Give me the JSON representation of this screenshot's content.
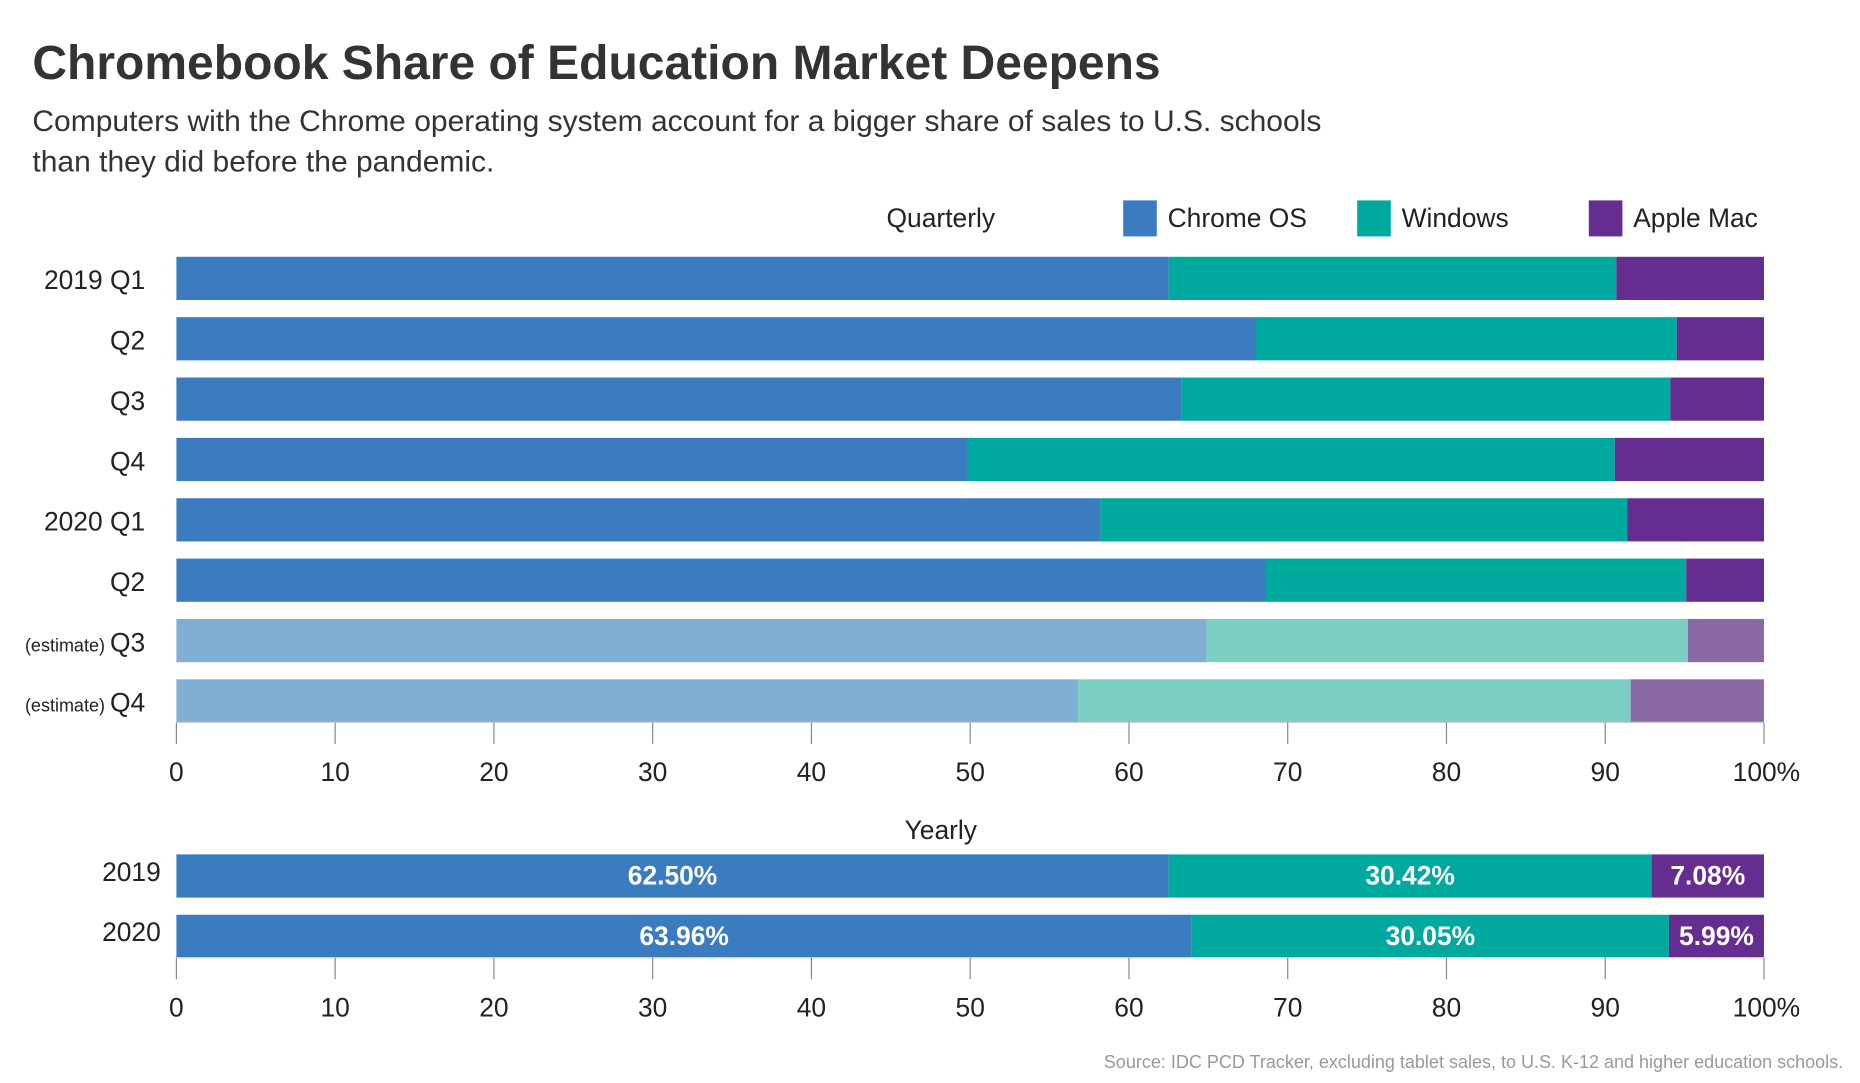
{
  "title": "Chromebook Share of Education Market Deepens",
  "subtitle_lines": [
    "Computers with the Chrome operating system account for a bigger share of sales to U.S. schools",
    "than they did before the pandemic."
  ],
  "source": "Source: IDC PCD Tracker, excluding tablet sales, to U.S. K-12 and higher education schools.",
  "colors": {
    "chrome": "#3b7bbf",
    "windows": "#00a99d",
    "apple": "#662d91",
    "chrome_est": "#80afd6",
    "windows_est": "#7acfc2",
    "apple_est": "#8a6aa5"
  },
  "chart_data": [
    {
      "type": "bar",
      "orientation": "horizontal-stacked",
      "title": "Quarterly",
      "legend": [
        "Chrome OS",
        "Windows",
        "Apple Mac"
      ],
      "legend_placement": "top-right",
      "categories": [
        {
          "prefix": "",
          "label": "2019 Q1",
          "estimate": false
        },
        {
          "prefix": "",
          "label": "Q2",
          "estimate": false
        },
        {
          "prefix": "",
          "label": "Q3",
          "estimate": false
        },
        {
          "prefix": "",
          "label": "Q4",
          "estimate": false
        },
        {
          "prefix": "",
          "label": "2020 Q1",
          "estimate": false
        },
        {
          "prefix": "",
          "label": "Q2",
          "estimate": false
        },
        {
          "prefix": "(estimate)",
          "label": "Q3",
          "estimate": true
        },
        {
          "prefix": "(estimate)",
          "label": "Q4",
          "estimate": true
        }
      ],
      "series": [
        {
          "name": "Chrome OS",
          "values": [
            62.5,
            68.0,
            63.3,
            49.8,
            58.2,
            68.6,
            64.9,
            56.8
          ]
        },
        {
          "name": "Windows",
          "values": [
            28.2,
            26.5,
            30.8,
            40.8,
            33.2,
            26.5,
            30.3,
            34.8
          ]
        },
        {
          "name": "Apple Mac",
          "values": [
            9.3,
            5.5,
            5.9,
            9.4,
            8.6,
            4.9,
            4.8,
            8.4
          ]
        }
      ],
      "xlim": [
        0,
        100
      ],
      "xticks": [
        "0",
        "10",
        "20",
        "30",
        "40",
        "50",
        "60",
        "70",
        "80",
        "90",
        "100%"
      ],
      "grid": false
    },
    {
      "type": "bar",
      "orientation": "horizontal-stacked",
      "title": "Yearly",
      "categories": [
        "2019",
        "2020"
      ],
      "series": [
        {
          "name": "Chrome OS",
          "values": [
            62.5,
            63.96
          ],
          "labels": [
            "62.50%",
            "63.96%"
          ]
        },
        {
          "name": "Windows",
          "values": [
            30.42,
            30.05
          ],
          "labels": [
            "30.42%",
            "30.05%"
          ]
        },
        {
          "name": "Apple Mac",
          "values": [
            7.08,
            5.99
          ],
          "labels": [
            "7.08%",
            "5.99%"
          ]
        }
      ],
      "xlim": [
        0,
        100
      ],
      "xticks": [
        "0",
        "10",
        "20",
        "30",
        "40",
        "50",
        "60",
        "70",
        "80",
        "90",
        "100%"
      ],
      "grid": false
    }
  ]
}
